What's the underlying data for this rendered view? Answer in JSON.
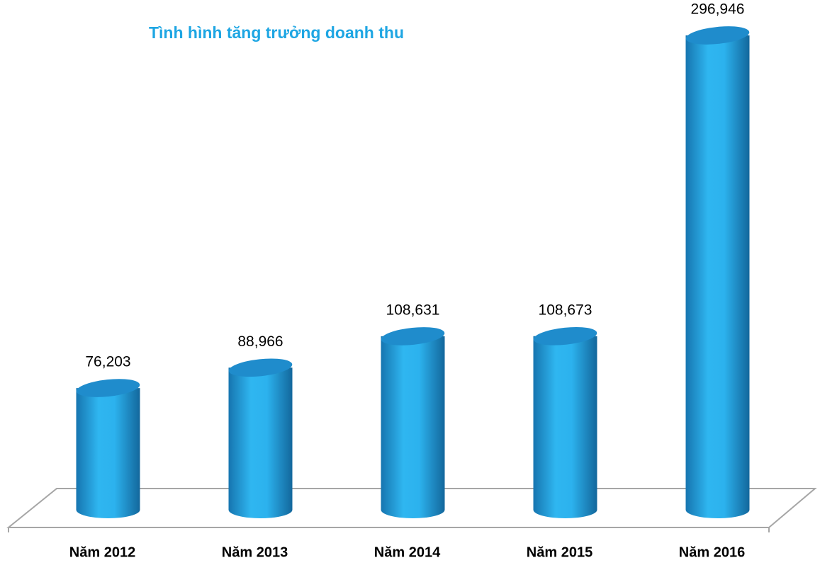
{
  "chart_data": {
    "type": "bar3d",
    "title": "Tình hình tăng trưởng doanh thu",
    "categories": [
      "Năm 2012",
      "Năm 2013",
      "Năm 2014",
      "Năm 2015",
      "Năm 2016"
    ],
    "values": [
      76203,
      88966,
      108631,
      108673,
      296946
    ],
    "value_labels": [
      "76,203",
      "88,966",
      "108,631",
      "108,673",
      "296,946"
    ],
    "color": "#2cb2ee"
  }
}
